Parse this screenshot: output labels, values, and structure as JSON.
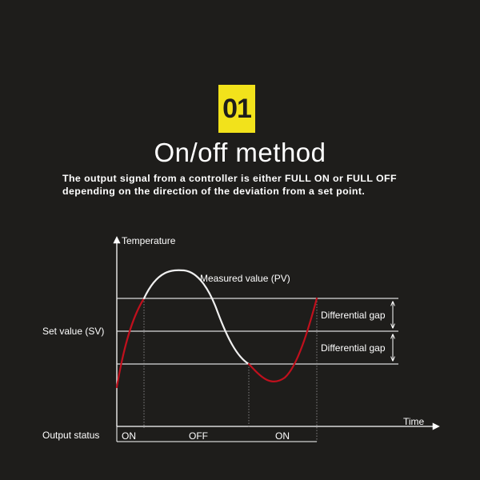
{
  "badge": {
    "number": "01"
  },
  "title": "On/off method",
  "description": [
    "The output signal from a controller is either FULL ON or FULL OFF",
    "depending on the direction of the deviation from a set point."
  ],
  "diagram": {
    "y_axis_label": "Temperature",
    "x_axis_label": "Time",
    "set_value_label": "Set value (SV)",
    "measured_value_label": "Measured value (PV)",
    "differential_gap_label_upper": "Differential gap",
    "differential_gap_label_lower": "Differential gap",
    "output_status_label": "Output  status",
    "output_states": [
      "ON",
      "OFF",
      "ON"
    ],
    "colors": {
      "rising_curve": "#c0101d",
      "measured_curve": "#f0f0f0",
      "badge": "#f2e21b",
      "background": "#1e1d1b"
    }
  }
}
